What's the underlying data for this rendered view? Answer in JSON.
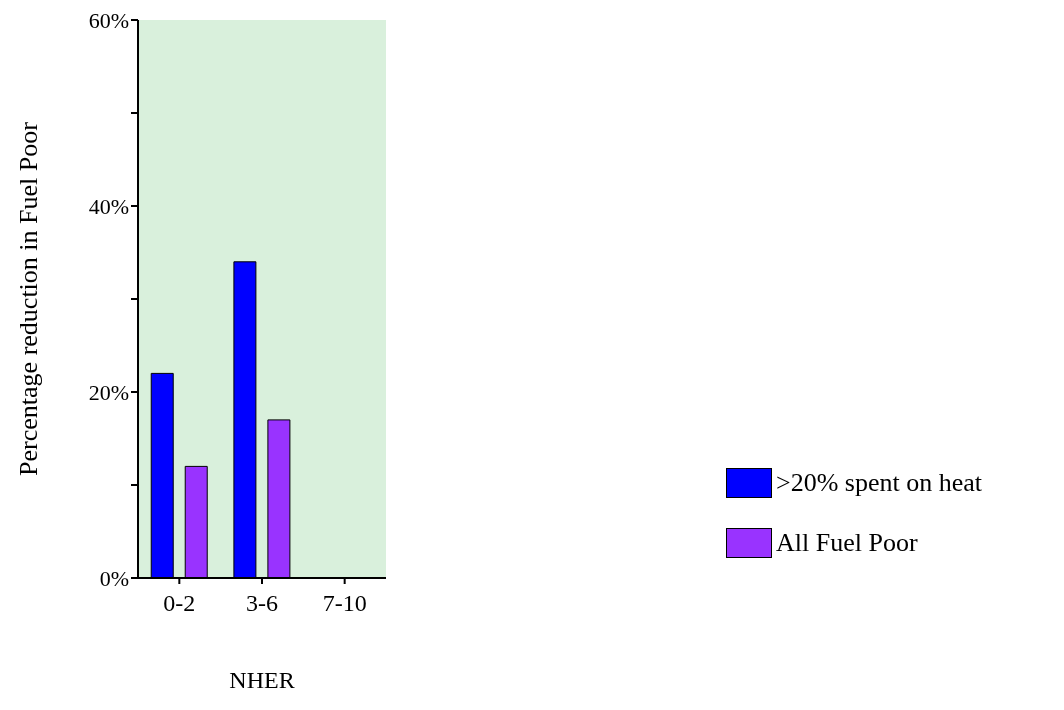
{
  "chart_data": {
    "type": "bar",
    "xlabel": "NHER",
    "ylabel": "Percentage reduction in Fuel Poor",
    "categories": [
      "0-2",
      "3-6",
      "7-10"
    ],
    "series": [
      {
        "name": ">20% spent on heat",
        "color": "#0000ff",
        "values": [
          22,
          34,
          0
        ]
      },
      {
        "name": "All Fuel Poor",
        "color": "#9933ff",
        "values": [
          12,
          17,
          0
        ]
      }
    ],
    "ylim": [
      0,
      60
    ],
    "yticks": [
      {
        "value": 0,
        "label": "0%"
      },
      {
        "value": 10,
        "label": null
      },
      {
        "value": 20,
        "label": "20%"
      },
      {
        "value": 30,
        "label": null
      },
      {
        "value": 40,
        "label": "40%"
      },
      {
        "value": 50,
        "label": null
      },
      {
        "value": 60,
        "label": "60%"
      }
    ],
    "grid": false,
    "legend": "right"
  }
}
